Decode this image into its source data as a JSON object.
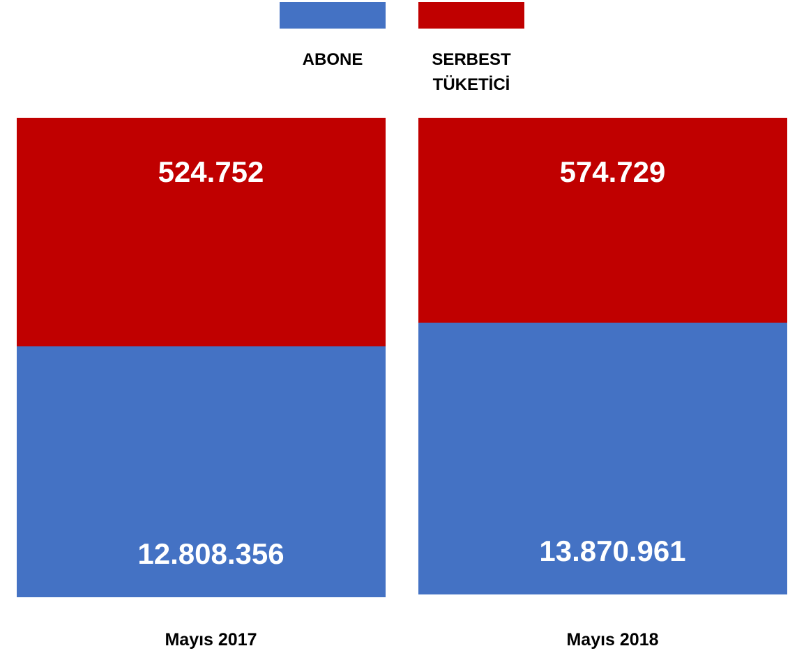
{
  "chart_data": {
    "type": "bar",
    "stacked": true,
    "normalized": true,
    "categories": [
      "Mayıs 2017",
      "Mayıs 2018"
    ],
    "series": [
      {
        "name": "ABONE",
        "values": [
          12808356,
          13870961
        ],
        "labels": [
          "12.808.356",
          "13.870.961"
        ],
        "color": "#4472C4"
      },
      {
        "name": "SERBEST TÜKETİCİ",
        "values": [
          524752,
          574729
        ],
        "labels": [
          "524.752",
          "574.729"
        ],
        "color": "#C00000"
      }
    ],
    "legend": {
      "position": "top",
      "items": [
        {
          "lines": [
            "ABONE"
          ],
          "color": "#4472C4"
        },
        {
          "lines": [
            "SERBEST",
            "TÜKETİCİ"
          ],
          "color": "#C00000"
        }
      ]
    },
    "grid": false,
    "axes_visible": false
  }
}
